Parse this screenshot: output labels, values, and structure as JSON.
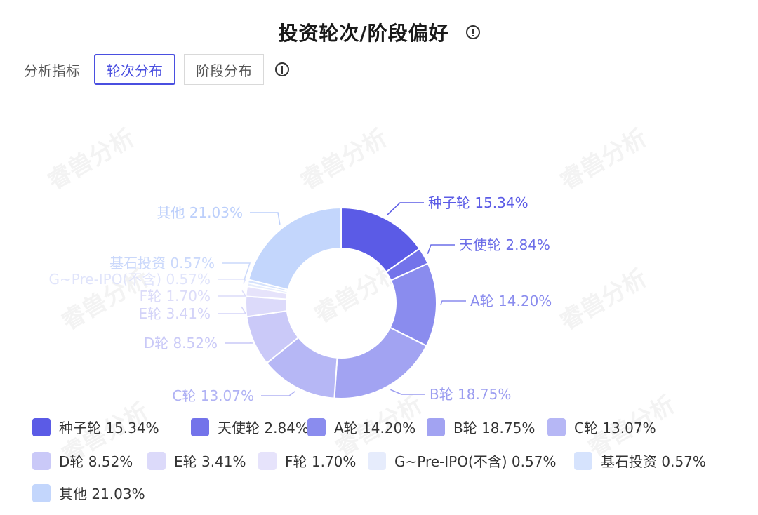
{
  "header": {
    "title": "投资轮次/阶段偏好",
    "info_icon": "info-icon"
  },
  "controls": {
    "metric_label": "分析指标",
    "tabs": [
      {
        "label": "轮次分布",
        "active": true
      },
      {
        "label": "阶段分布",
        "active": false
      }
    ],
    "info_icon": "info-icon"
  },
  "watermark": "睿兽分析",
  "chart_data": {
    "type": "pie",
    "style": "donut",
    "categories": [
      "种子轮",
      "天使轮",
      "A轮",
      "B轮",
      "C轮",
      "D轮",
      "E轮",
      "F轮",
      "G~Pre-IPO(不含)",
      "基石投资",
      "其他"
    ],
    "values": [
      15.34,
      2.84,
      14.2,
      18.75,
      13.07,
      8.52,
      3.41,
      1.7,
      0.57,
      0.57,
      21.03
    ],
    "labels": [
      "种子轮 15.34%",
      "天使轮 2.84%",
      "A轮 14.20%",
      "B轮 18.75%",
      "C轮 13.07%",
      "D轮 8.52%",
      "E轮 3.41%",
      "F轮 1.70%",
      "G~Pre-IPO(不含) 0.57%",
      "基石投资 0.57%",
      "其他 21.03%"
    ],
    "colors": [
      "#5b5be6",
      "#7373ea",
      "#8a8cee",
      "#a2a3f2",
      "#b6b7f5",
      "#cac9f8",
      "#dcdafa",
      "#e6e3fb",
      "#e6ecfc",
      "#d6e3fd",
      "#c3d6fc"
    ],
    "legend_position": "bottom"
  }
}
